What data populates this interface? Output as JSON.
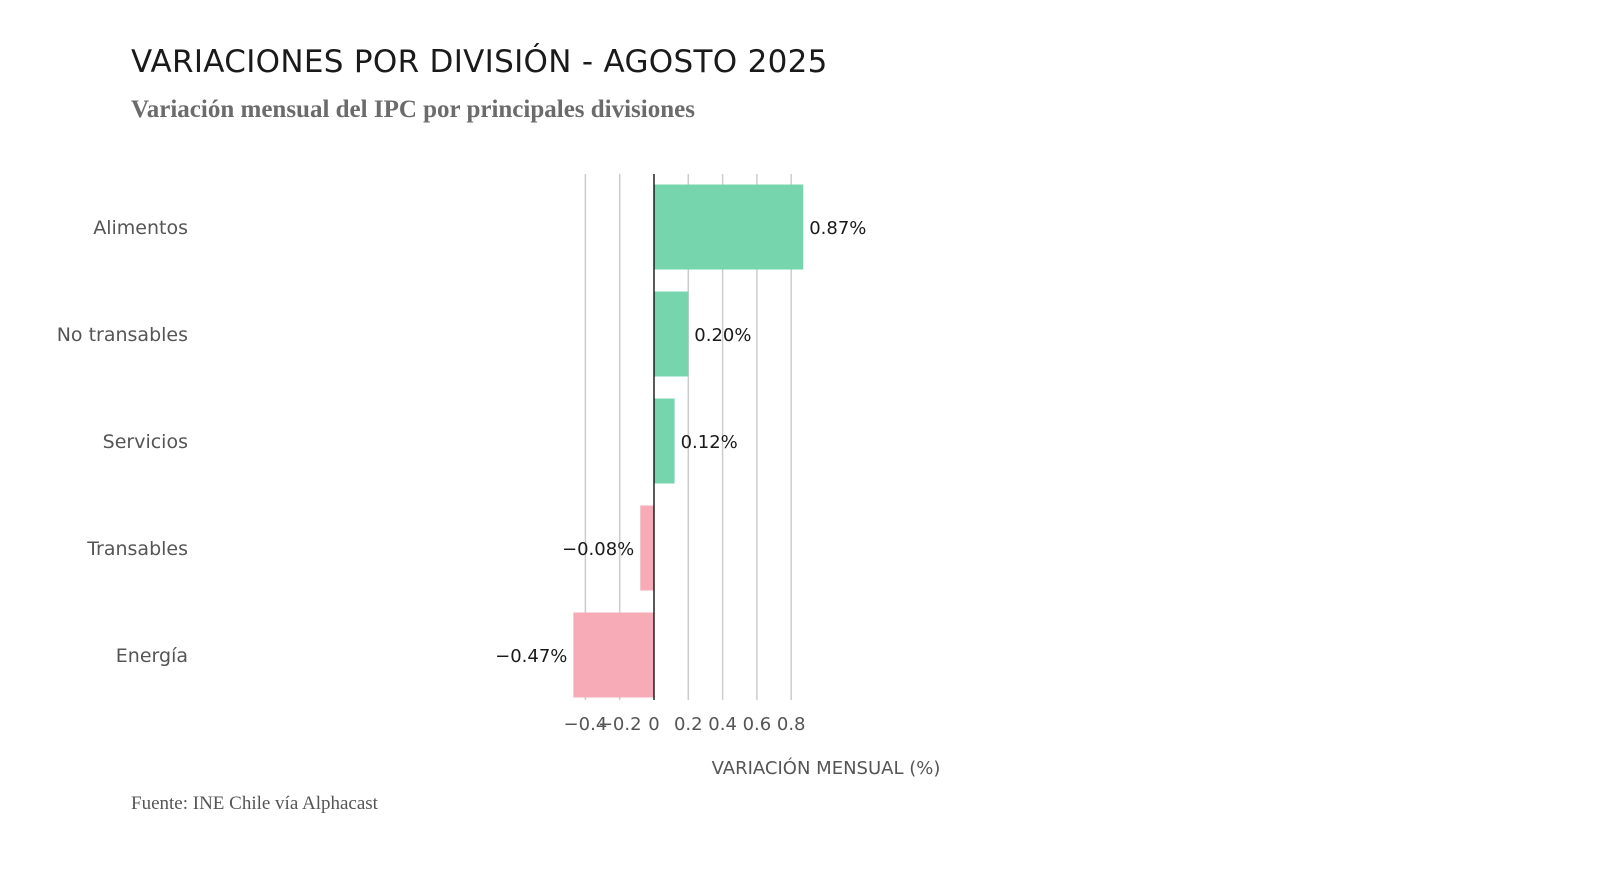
{
  "chart_data": {
    "type": "bar",
    "orientation": "horizontal",
    "title": "VARIACIONES POR DIVISIÓN - AGOSTO 2025",
    "subtitle": "Variación mensual del IPC por principales divisiones",
    "xlabel": "VARIACIÓN MENSUAL (%)",
    "ylabel": "",
    "source": "Fuente: INE Chile vía Alphacast",
    "categories": [
      "Alimentos",
      "No transables",
      "Servicios",
      "Transables",
      "Energía"
    ],
    "values": [
      0.87,
      0.2,
      0.12,
      -0.08,
      -0.47
    ],
    "data_labels": [
      "0.87%",
      "0.20%",
      "0.12%",
      "-0.08%",
      "-0.47%"
    ],
    "xlim": [
      -0.5,
      1.0
    ],
    "xticks": [
      -0.4,
      -0.2,
      0,
      0.2,
      0.4,
      0.6,
      0.8
    ],
    "xtick_labels": [
      "-0.4",
      "-0.2",
      "0",
      "0.2",
      "0.4",
      "0.6",
      "0.8"
    ],
    "grid": "vertical",
    "legend": "none",
    "colors": {
      "positive": "#77d5ae",
      "negative": "#f6abb7",
      "grid": "#cccccc",
      "zero_line": "#000000"
    }
  }
}
